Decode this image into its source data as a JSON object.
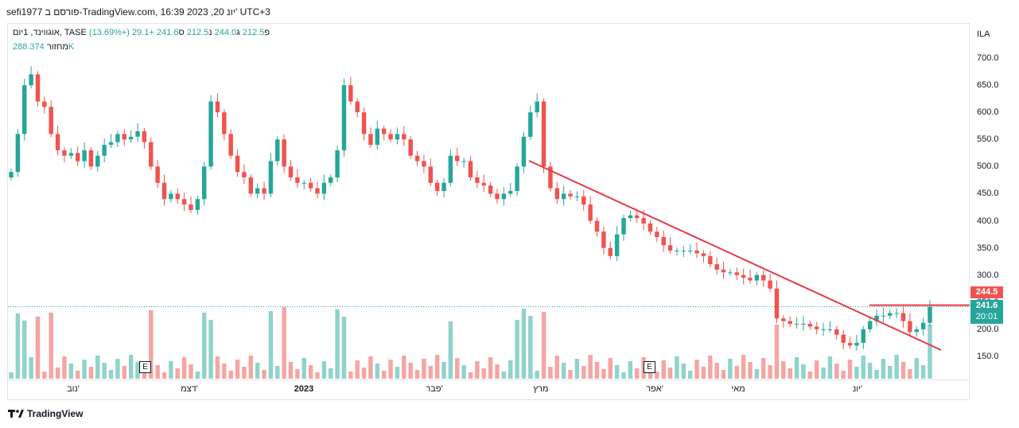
{
  "header": {
    "title_text": "sefi1977 פורסם ב-TradingView.com, 16:39 2023 ,20 יונ' UTC+3"
  },
  "legend": {
    "symbol": "אוגווינד, 1יום, TASE",
    "open_label": "פ",
    "open": "212.5",
    "high_label": "ג",
    "high": "244.0",
    "low_label": "נ",
    "low": "212.5",
    "close_label": "ס",
    "close": "241.6",
    "change": "+29.1 (+13.69%)",
    "volume_label": "מחזור",
    "volume_value": "288.374K"
  },
  "currency": "ILA",
  "footer_brand": "TradingView",
  "events": [
    "E",
    "E"
  ],
  "colors": {
    "up": "#26a69a",
    "down": "#ef5350",
    "trend": "#e63946",
    "vol_up": "#8fd3cb",
    "vol_down": "#f5a5a3"
  },
  "chart_data": {
    "type": "candlestick",
    "title": "",
    "x_ticks": [
      "נוב'",
      "דצמ'",
      "2023",
      "פבר'",
      "מרץ",
      "אפר'",
      "מאי",
      "יונ'"
    ],
    "y_ticks": [
      "700.0",
      "650.0",
      "600.0",
      "550.0",
      "500.0",
      "450.0",
      "400.0",
      "350.0",
      "300.0",
      "250.0",
      "200.0",
      "150.0"
    ],
    "ylim": [
      120,
      720
    ],
    "price_tag_red": "244.5",
    "price_tag_green": "241.6",
    "countdown": "20:01",
    "closes": [
      490,
      560,
      650,
      670,
      620,
      610,
      560,
      530,
      520,
      525,
      510,
      530,
      500,
      520,
      540,
      545,
      560,
      550,
      555,
      565,
      545,
      500,
      470,
      440,
      450,
      440,
      430,
      420,
      440,
      500,
      620,
      600,
      560,
      520,
      490,
      480,
      450,
      460,
      450,
      510,
      550,
      500,
      480,
      470,
      470,
      460,
      450,
      470,
      480,
      530,
      650,
      620,
      600,
      560,
      540,
      570,
      560,
      550,
      560,
      550,
      520,
      510,
      500,
      470,
      455,
      470,
      520,
      510,
      510,
      480,
      470,
      465,
      450,
      440,
      450,
      455,
      500,
      555,
      600,
      620,
      500,
      460,
      440,
      450,
      445,
      445,
      430,
      400,
      380,
      350,
      335,
      375,
      405,
      410,
      405,
      395,
      380,
      370,
      355,
      345,
      345,
      345,
      345,
      340,
      335,
      320,
      310,
      305,
      305,
      300,
      295,
      290,
      300,
      290,
      275,
      220,
      215,
      210,
      210,
      210,
      205,
      200,
      200,
      200,
      190,
      175,
      170,
      175,
      200,
      215,
      225,
      225,
      230,
      230,
      215,
      195,
      200,
      212,
      241.6
    ],
    "volume_max": 288.374
  }
}
